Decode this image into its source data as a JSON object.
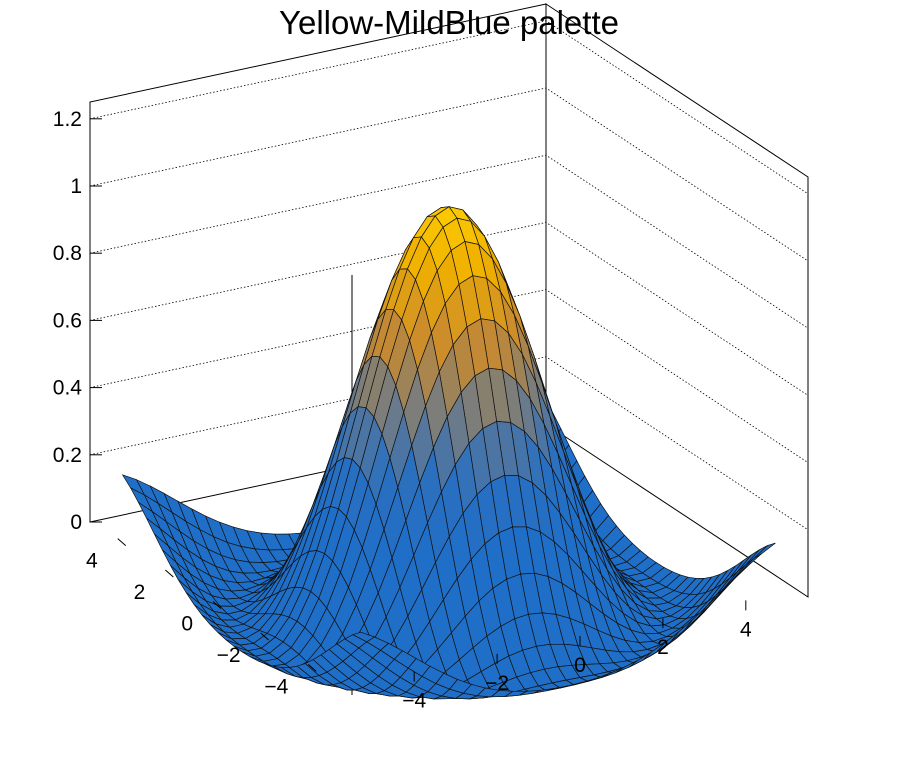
{
  "title": "Yellow-MildBlue palette",
  "chart_data": {
    "type": "surface",
    "title": "Yellow-MildBlue palette",
    "xlabel": "",
    "ylabel": "",
    "zlabel": "",
    "xlim": [
      -5.5,
      5.5
    ],
    "ylim": [
      -5.5,
      5.5
    ],
    "zlim": [
      0,
      1.25
    ],
    "x_ticks": [
      "−4",
      "−2",
      "0",
      "2",
      "4"
    ],
    "y_ticks": [
      "−4",
      "−2",
      "0",
      "2",
      "4"
    ],
    "z_ticks": [
      "0",
      "0.2",
      "0.4",
      "0.6",
      "0.8",
      "1",
      "1.2"
    ],
    "function": "sin(sqrt(x^2+y^2))/sqrt(x^2+y^2)",
    "grid": true,
    "palette": [
      "#1f6fc8",
      "#2a6fc0",
      "#777d80",
      "#c98a2e",
      "#f0b000",
      "#ffd400"
    ]
  }
}
